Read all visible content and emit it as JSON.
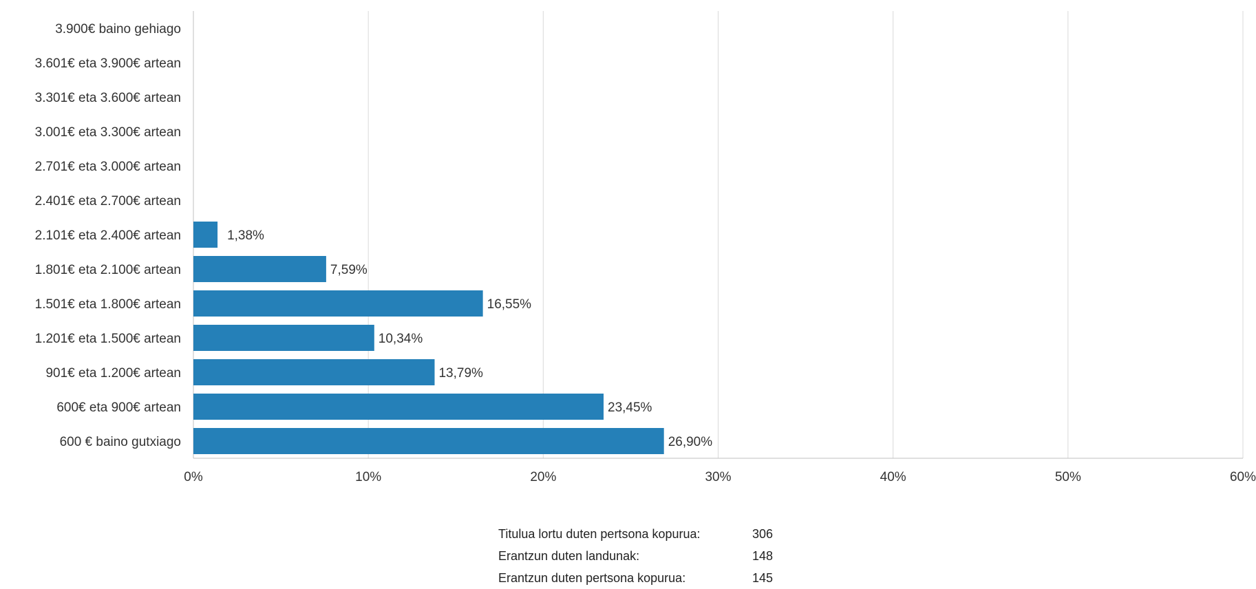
{
  "chart_data": {
    "type": "bar",
    "orientation": "horizontal",
    "categories": [
      "3.900€ baino gehiago",
      "3.601€ eta 3.900€ artean",
      "3.301€ eta 3.600€ artean",
      "3.001€ eta 3.300€ artean",
      "2.701€ eta 3.000€ artean",
      "2.401€ eta 2.700€ artean",
      "2.101€ eta 2.400€ artean",
      "1.801€ eta 2.100€ artean",
      "1.501€ eta 1.800€ artean",
      "1.201€ eta 1.500€ artean",
      "901€ eta 1.200€ artean",
      "600€ eta 900€ artean",
      "600 € baino gutxiago"
    ],
    "values": [
      null,
      null,
      null,
      null,
      null,
      null,
      1.38,
      7.59,
      16.55,
      10.34,
      13.79,
      23.45,
      26.9
    ],
    "data_labels": [
      "",
      "",
      "",
      "",
      "",
      "",
      "1,38%",
      "7,59%",
      "16,55%",
      "10,34%",
      "13,79%",
      "23,45%",
      "26,90%"
    ],
    "x_ticks": [
      0,
      10,
      20,
      30,
      40,
      50,
      60
    ],
    "x_tick_labels": [
      "0%",
      "10%",
      "20%",
      "30%",
      "40%",
      "50%",
      "60%"
    ],
    "xlim": [
      0,
      60
    ],
    "grid": true,
    "legend": "none",
    "title": "",
    "xlabel": "",
    "ylabel": "",
    "bar_color": "#2580b8",
    "grid_color": "#d9d9d9"
  },
  "summary": [
    {
      "label": "Titulua lortu duten pertsona kopurua:",
      "value": "306"
    },
    {
      "label": "Erantzun duten landunak:",
      "value": "148"
    },
    {
      "label": "Erantzun duten pertsona kopurua:",
      "value": "145"
    }
  ]
}
